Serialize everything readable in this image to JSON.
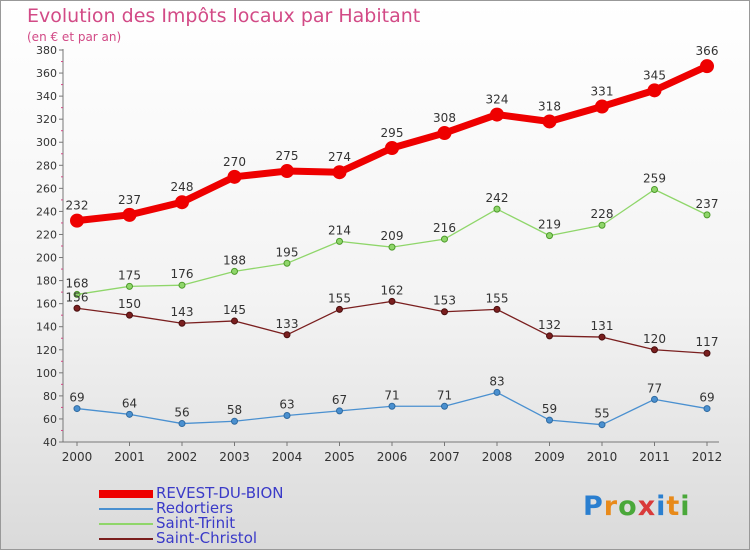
{
  "title": "Evolution des Impôts locaux par Habitant",
  "subtitle": "(en € et par an)",
  "brand": "Proxiti",
  "chart_data": {
    "type": "line",
    "categories": [
      "2000",
      "2001",
      "2002",
      "2003",
      "2004",
      "2005",
      "2006",
      "2007",
      "2008",
      "2009",
      "2010",
      "2011",
      "2012"
    ],
    "ylim": [
      40,
      380
    ],
    "yticks": [
      40,
      60,
      80,
      100,
      120,
      140,
      160,
      180,
      200,
      220,
      240,
      260,
      280,
      300,
      320,
      340,
      360,
      380
    ],
    "grid": false,
    "legend_position": "bottom-left",
    "series": [
      {
        "name": "REVEST-DU-BION",
        "color": "#ee0000",
        "values": [
          232,
          237,
          248,
          270,
          275,
          274,
          295,
          308,
          324,
          318,
          331,
          345,
          366
        ]
      },
      {
        "name": "Redortiers",
        "color": "#4a90d0",
        "values": [
          69,
          64,
          56,
          58,
          63,
          67,
          71,
          71,
          83,
          59,
          55,
          77,
          69
        ]
      },
      {
        "name": "Saint-Trinit",
        "color": "#8fd66a",
        "values": [
          168,
          175,
          176,
          188,
          195,
          214,
          209,
          216,
          242,
          219,
          228,
          259,
          237
        ]
      },
      {
        "name": "Saint-Christol",
        "color": "#7a1f1f",
        "values": [
          156,
          150,
          143,
          145,
          133,
          155,
          162,
          153,
          155,
          132,
          131,
          120,
          117
        ]
      }
    ]
  }
}
